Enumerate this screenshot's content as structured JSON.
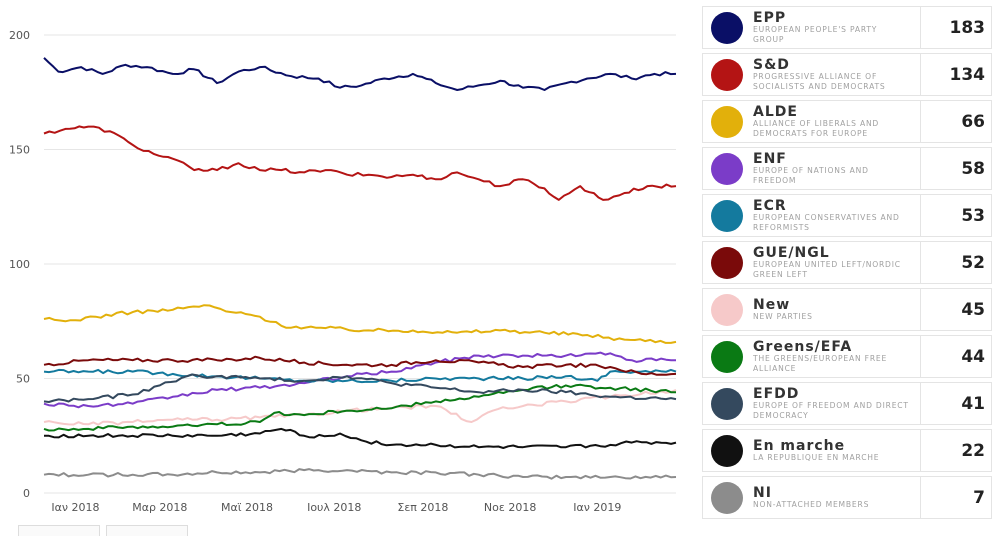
{
  "chart_data": {
    "type": "line",
    "y_ticks": [
      "0",
      "50",
      "100",
      "150",
      "200"
    ],
    "ylim": [
      0,
      200
    ],
    "grid": true,
    "x_range": [
      "2017-12-10",
      "2019-02-25"
    ],
    "x_ticks": [
      {
        "date": "2018-01-01",
        "label": "Ιαν 2018"
      },
      {
        "date": "2018-03-01",
        "label": "Μαρ 2018"
      },
      {
        "date": "2018-05-01",
        "label": "Μαϊ 2018"
      },
      {
        "date": "2018-07-01",
        "label": "Ιουλ 2018"
      },
      {
        "date": "2018-09-01",
        "label": "Σεπ 2018"
      },
      {
        "date": "2018-11-01",
        "label": "Νοε 2018"
      },
      {
        "date": "2019-01-01",
        "label": "Ιαν 2019"
      }
    ],
    "series": [
      {
        "name": "EPP",
        "color": "#0a0f66",
        "points": [
          [
            "2017-12-10",
            190
          ],
          [
            "2017-12-20",
            184
          ],
          [
            "2018-01-05",
            186
          ],
          [
            "2018-01-20",
            183
          ],
          [
            "2018-02-05",
            187
          ],
          [
            "2018-02-20",
            186
          ],
          [
            "2018-03-10",
            183
          ],
          [
            "2018-03-25",
            185
          ],
          [
            "2018-04-10",
            179
          ],
          [
            "2018-04-25",
            184
          ],
          [
            "2018-05-10",
            186
          ],
          [
            "2018-06-01",
            182
          ],
          [
            "2018-06-20",
            181
          ],
          [
            "2018-07-05",
            177
          ],
          [
            "2018-07-20",
            178
          ],
          [
            "2018-08-05",
            181
          ],
          [
            "2018-08-25",
            183
          ],
          [
            "2018-09-10",
            179
          ],
          [
            "2018-09-25",
            176
          ],
          [
            "2018-10-10",
            178
          ],
          [
            "2018-10-25",
            180
          ],
          [
            "2018-11-10",
            177
          ],
          [
            "2018-11-25",
            176
          ],
          [
            "2018-12-10",
            179
          ],
          [
            "2018-12-25",
            181
          ],
          [
            "2019-01-10",
            183
          ],
          [
            "2019-01-25",
            181
          ],
          [
            "2019-02-10",
            183
          ],
          [
            "2019-02-25",
            183
          ]
        ]
      },
      {
        "name": "S&D",
        "color": "#b41414",
        "points": [
          [
            "2017-12-10",
            157
          ],
          [
            "2017-12-25",
            159
          ],
          [
            "2018-01-10",
            160
          ],
          [
            "2018-01-25",
            158
          ],
          [
            "2018-02-10",
            152
          ],
          [
            "2018-02-25",
            148
          ],
          [
            "2018-03-10",
            146
          ],
          [
            "2018-03-25",
            141
          ],
          [
            "2018-04-10",
            141
          ],
          [
            "2018-04-25",
            144
          ],
          [
            "2018-05-10",
            141
          ],
          [
            "2018-05-25",
            141
          ],
          [
            "2018-06-10",
            140
          ],
          [
            "2018-06-25",
            141
          ],
          [
            "2018-07-10",
            139
          ],
          [
            "2018-07-25",
            139
          ],
          [
            "2018-08-10",
            138
          ],
          [
            "2018-08-25",
            139
          ],
          [
            "2018-09-10",
            137
          ],
          [
            "2018-09-25",
            140
          ],
          [
            "2018-10-10",
            137
          ],
          [
            "2018-10-25",
            134
          ],
          [
            "2018-11-10",
            137
          ],
          [
            "2018-11-25",
            133
          ],
          [
            "2018-12-05",
            128
          ],
          [
            "2018-12-20",
            134
          ],
          [
            "2019-01-05",
            128
          ],
          [
            "2019-01-20",
            131
          ],
          [
            "2019-02-05",
            134
          ],
          [
            "2019-02-25",
            134
          ]
        ]
      },
      {
        "name": "ALDE",
        "color": "#e2b00b",
        "points": [
          [
            "2017-12-10",
            76
          ],
          [
            "2017-12-25",
            75
          ],
          [
            "2018-01-15",
            77
          ],
          [
            "2018-02-10",
            79
          ],
          [
            "2018-03-10",
            80
          ],
          [
            "2018-04-01",
            82
          ],
          [
            "2018-04-20",
            79
          ],
          [
            "2018-05-10",
            77
          ],
          [
            "2018-05-25",
            73
          ],
          [
            "2018-06-25",
            72
          ],
          [
            "2018-07-25",
            71
          ],
          [
            "2018-08-25",
            71
          ],
          [
            "2018-09-25",
            70
          ],
          [
            "2018-10-25",
            71
          ],
          [
            "2018-11-25",
            70
          ],
          [
            "2018-12-25",
            69
          ],
          [
            "2019-01-20",
            67
          ],
          [
            "2019-02-25",
            66
          ]
        ]
      },
      {
        "name": "ENF",
        "color": "#7b3cc8",
        "points": [
          [
            "2017-12-10",
            39
          ],
          [
            "2018-01-10",
            38
          ],
          [
            "2018-02-10",
            39
          ],
          [
            "2018-03-10",
            42
          ],
          [
            "2018-04-10",
            45
          ],
          [
            "2018-05-10",
            46
          ],
          [
            "2018-06-10",
            48
          ],
          [
            "2018-07-10",
            51
          ],
          [
            "2018-08-10",
            53
          ],
          [
            "2018-09-10",
            57
          ],
          [
            "2018-10-10",
            60
          ],
          [
            "2018-11-10",
            60
          ],
          [
            "2018-12-10",
            60
          ],
          [
            "2019-01-10",
            61
          ],
          [
            "2019-01-25",
            58
          ],
          [
            "2019-02-25",
            58
          ]
        ]
      },
      {
        "name": "ECR",
        "color": "#147a9e",
        "points": [
          [
            "2017-12-10",
            53
          ],
          [
            "2018-01-10",
            53
          ],
          [
            "2018-02-10",
            53
          ],
          [
            "2018-03-10",
            52
          ],
          [
            "2018-04-10",
            51
          ],
          [
            "2018-05-10",
            50
          ],
          [
            "2018-06-10",
            49
          ],
          [
            "2018-07-10",
            49
          ],
          [
            "2018-08-10",
            49
          ],
          [
            "2018-09-10",
            50
          ],
          [
            "2018-10-10",
            50
          ],
          [
            "2018-11-10",
            50
          ],
          [
            "2018-12-10",
            51
          ],
          [
            "2019-01-01",
            49
          ],
          [
            "2019-01-10",
            53
          ],
          [
            "2019-02-25",
            53
          ]
        ]
      },
      {
        "name": "GUE/NGL",
        "color": "#7a0a0a",
        "points": [
          [
            "2017-12-10",
            56
          ],
          [
            "2018-01-10",
            58
          ],
          [
            "2018-02-10",
            58
          ],
          [
            "2018-03-10",
            58
          ],
          [
            "2018-04-10",
            58
          ],
          [
            "2018-05-10",
            59
          ],
          [
            "2018-06-10",
            57
          ],
          [
            "2018-07-10",
            56
          ],
          [
            "2018-08-10",
            56
          ],
          [
            "2018-09-10",
            58
          ],
          [
            "2018-10-10",
            57
          ],
          [
            "2018-11-10",
            55
          ],
          [
            "2018-12-10",
            56
          ],
          [
            "2019-01-10",
            55
          ],
          [
            "2019-02-01",
            52
          ],
          [
            "2019-02-25",
            52
          ]
        ]
      },
      {
        "name": "New",
        "color": "#f6c9c9",
        "points": [
          [
            "2017-12-10",
            31
          ],
          [
            "2018-01-10",
            30
          ],
          [
            "2018-02-10",
            31
          ],
          [
            "2018-03-10",
            32
          ],
          [
            "2018-04-10",
            32
          ],
          [
            "2018-05-10",
            33
          ],
          [
            "2018-06-10",
            34
          ],
          [
            "2018-07-10",
            36
          ],
          [
            "2018-08-10",
            37
          ],
          [
            "2018-09-10",
            38
          ],
          [
            "2018-10-05",
            31
          ],
          [
            "2018-10-20",
            36
          ],
          [
            "2018-11-10",
            38
          ],
          [
            "2018-12-10",
            40
          ],
          [
            "2019-01-10",
            42
          ],
          [
            "2019-02-25",
            45
          ]
        ]
      },
      {
        "name": "Greens/EFA",
        "color": "#0a7a14",
        "points": [
          [
            "2017-12-10",
            28
          ],
          [
            "2018-01-10",
            28
          ],
          [
            "2018-02-10",
            29
          ],
          [
            "2018-03-10",
            29
          ],
          [
            "2018-04-10",
            30
          ],
          [
            "2018-05-10",
            31
          ],
          [
            "2018-05-20",
            35
          ],
          [
            "2018-06-10",
            34
          ],
          [
            "2018-07-10",
            36
          ],
          [
            "2018-08-10",
            37
          ],
          [
            "2018-09-10",
            40
          ],
          [
            "2018-10-10",
            42
          ],
          [
            "2018-11-10",
            45
          ],
          [
            "2018-12-10",
            47
          ],
          [
            "2019-01-10",
            46
          ],
          [
            "2019-02-25",
            44
          ]
        ]
      },
      {
        "name": "EFDD",
        "color": "#34495e",
        "points": [
          [
            "2017-12-10",
            40
          ],
          [
            "2018-01-10",
            41
          ],
          [
            "2018-02-10",
            43
          ],
          [
            "2018-03-01",
            47
          ],
          [
            "2018-03-20",
            51
          ],
          [
            "2018-04-10",
            51
          ],
          [
            "2018-05-10",
            50
          ],
          [
            "2018-06-10",
            49
          ],
          [
            "2018-07-10",
            51
          ],
          [
            "2018-08-10",
            48
          ],
          [
            "2018-09-10",
            46
          ],
          [
            "2018-10-10",
            44
          ],
          [
            "2018-11-10",
            45
          ],
          [
            "2018-12-10",
            44
          ],
          [
            "2019-01-10",
            42
          ],
          [
            "2019-02-25",
            41
          ]
        ]
      },
      {
        "name": "En marche",
        "color": "#111111",
        "points": [
          [
            "2017-12-10",
            25
          ],
          [
            "2018-01-10",
            25
          ],
          [
            "2018-02-10",
            25
          ],
          [
            "2018-03-10",
            25
          ],
          [
            "2018-04-10",
            25
          ],
          [
            "2018-05-10",
            26
          ],
          [
            "2018-05-25",
            28
          ],
          [
            "2018-06-10",
            25
          ],
          [
            "2018-07-01",
            25
          ],
          [
            "2018-07-05",
            26
          ],
          [
            "2018-07-20",
            23
          ],
          [
            "2018-08-10",
            21
          ],
          [
            "2018-09-10",
            21
          ],
          [
            "2018-10-10",
            20
          ],
          [
            "2018-11-10",
            20
          ],
          [
            "2018-12-10",
            20
          ],
          [
            "2019-01-10",
            21
          ],
          [
            "2019-01-25",
            22
          ],
          [
            "2019-02-25",
            22
          ]
        ]
      },
      {
        "name": "NI",
        "color": "#8c8c8c",
        "points": [
          [
            "2017-12-10",
            8
          ],
          [
            "2018-01-10",
            8
          ],
          [
            "2018-02-10",
            8
          ],
          [
            "2018-03-10",
            8
          ],
          [
            "2018-04-10",
            9
          ],
          [
            "2018-05-10",
            9
          ],
          [
            "2018-06-10",
            10
          ],
          [
            "2018-07-10",
            10
          ],
          [
            "2018-08-10",
            9
          ],
          [
            "2018-09-10",
            9
          ],
          [
            "2018-10-10",
            8
          ],
          [
            "2018-11-10",
            7
          ],
          [
            "2018-12-10",
            7
          ],
          [
            "2019-01-10",
            7
          ],
          [
            "2019-02-25",
            7
          ]
        ]
      }
    ]
  },
  "legend": [
    {
      "abbr": "EPP",
      "full": "EUROPEAN PEOPLE'S PARTY GROUP",
      "seats": "183",
      "color": "#0a0f66"
    },
    {
      "abbr": "S&D",
      "full": "PROGRESSIVE ALLIANCE OF SOCIALISTS AND DEMOCRATS",
      "seats": "134",
      "color": "#b41414"
    },
    {
      "abbr": "ALDE",
      "full": "ALLIANCE OF LIBERALS AND DEMOCRATS FOR EUROPE",
      "seats": "66",
      "color": "#e2b00b"
    },
    {
      "abbr": "ENF",
      "full": "EUROPE OF NATIONS AND FREEDOM",
      "seats": "58",
      "color": "#7b3cc8"
    },
    {
      "abbr": "ECR",
      "full": "EUROPEAN CONSERVATIVES AND REFORMISTS",
      "seats": "53",
      "color": "#147a9e"
    },
    {
      "abbr": "GUE/NGL",
      "full": "EUROPEAN UNITED LEFT/NORDIC GREEN LEFT",
      "seats": "52",
      "color": "#7a0a0a"
    },
    {
      "abbr": "New",
      "full": "NEW PARTIES",
      "seats": "45",
      "color": "#f6c9c9"
    },
    {
      "abbr": "Greens/EFA",
      "full": "THE GREENS/EUROPEAN FREE ALLIANCE",
      "seats": "44",
      "color": "#0a7a14"
    },
    {
      "abbr": "EFDD",
      "full": "EUROPE OF FREEDOM AND DIRECT DEMOCRACY",
      "seats": "41",
      "color": "#34495e"
    },
    {
      "abbr": "En marche",
      "full": "LA REPUBLIQUE EN MARCHE",
      "seats": "22",
      "color": "#111111"
    },
    {
      "abbr": "NI",
      "full": "NON-ATTACHED MEMBERS",
      "seats": "7",
      "color": "#8c8c8c"
    }
  ]
}
